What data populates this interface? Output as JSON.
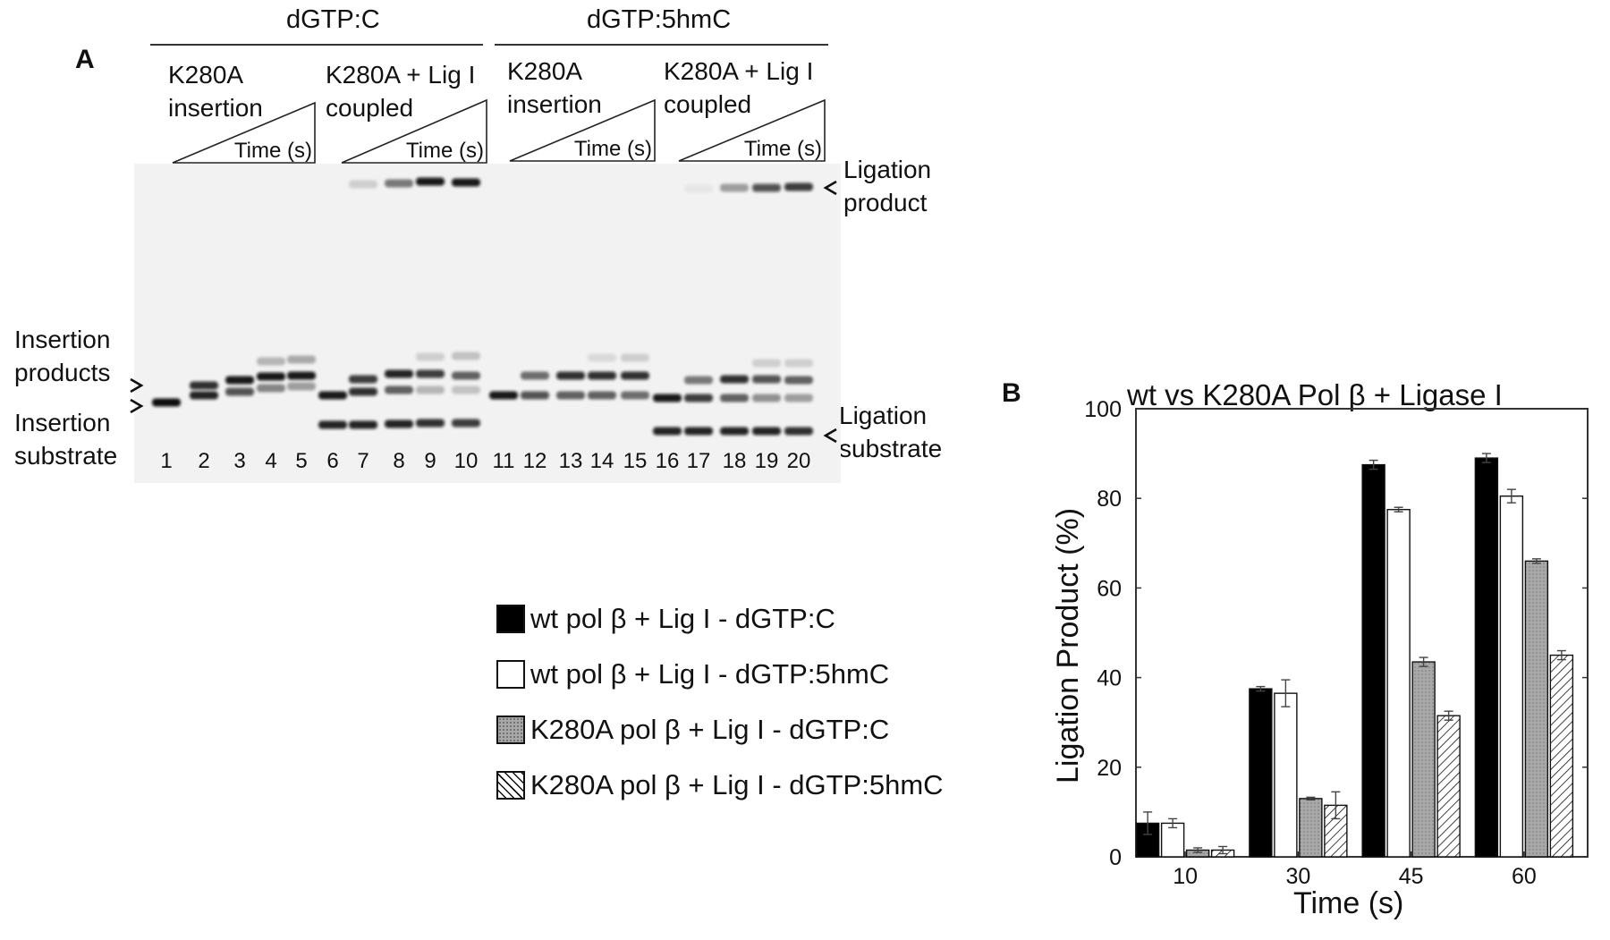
{
  "panel_a": {
    "letter": "A",
    "groups": [
      {
        "label": "dGTP:C",
        "subgroups": [
          {
            "line1": "K280A",
            "line2": "insertion"
          },
          {
            "line1": "K280A + Lig I",
            "line2": "coupled"
          }
        ]
      },
      {
        "label": "dGTP:5hmC",
        "subgroups": [
          {
            "line1": "K280A",
            "line2": "insertion"
          },
          {
            "line1": "K280A + Lig I",
            "line2": "coupled"
          }
        ]
      }
    ],
    "time_label": "Time (s)",
    "left_labels": {
      "products_line1": "Insertion",
      "products_line2": "products",
      "substrate_line1": "Insertion",
      "substrate_line2": "substrate"
    },
    "right_labels": {
      "lig_product_line1": "Ligation",
      "lig_product_line2": "product",
      "lig_substrate_line1": "Ligation",
      "lig_substrate_line2": "substrate"
    },
    "lanes": [
      "1",
      "2",
      "3",
      "4",
      "5",
      "6",
      "7",
      "8",
      "9",
      "10",
      "11",
      "12",
      "13",
      "14",
      "15",
      "16",
      "17",
      "18",
      "19",
      "20"
    ]
  },
  "panel_b": {
    "letter": "B"
  },
  "legend": [
    {
      "label": "wt pol β + Lig I  - dGTP:C",
      "fill": "#000000"
    },
    {
      "label": "wt pol β + Lig I - dGTP:5hmC",
      "fill": "#ffffff"
    },
    {
      "label": "K280A pol β + Lig I - dGTP:C",
      "fill": "#a8a8a8"
    },
    {
      "label": "K280A pol β + Lig I - dGTP:5hmC",
      "fill": "hatch"
    }
  ],
  "chart_data": {
    "type": "bar",
    "title": "wt vs K280A Pol β + Ligase I",
    "xlabel": "Time (s)",
    "ylabel": "Ligation Product (%)",
    "ylim": [
      0,
      100
    ],
    "yticks": [
      0,
      20,
      40,
      60,
      80,
      100
    ],
    "categories": [
      "10",
      "30",
      "45",
      "60"
    ],
    "series": [
      {
        "name": "wt pol β + Lig I  - dGTP:C",
        "values": [
          7.5,
          37.5,
          87.5,
          89
        ],
        "errors": [
          2.5,
          0.5,
          1,
          1
        ],
        "color": "#000000"
      },
      {
        "name": "wt pol β + Lig I - dGTP:5hmC",
        "values": [
          7.5,
          36.5,
          77.5,
          80.5
        ],
        "errors": [
          1,
          3,
          0.5,
          1.5
        ],
        "color": "#ffffff"
      },
      {
        "name": "K280A pol β + Lig I - dGTP:C",
        "values": [
          1.5,
          13,
          43.5,
          66
        ],
        "errors": [
          0.5,
          0.3,
          1,
          0.5
        ],
        "color": "#a8a8a8"
      },
      {
        "name": "K280A pol β + Lig I - dGTP:5hmC",
        "values": [
          1.5,
          11.5,
          31.5,
          45
        ],
        "errors": [
          0.8,
          3,
          1,
          1
        ],
        "color": "hatch"
      }
    ]
  }
}
